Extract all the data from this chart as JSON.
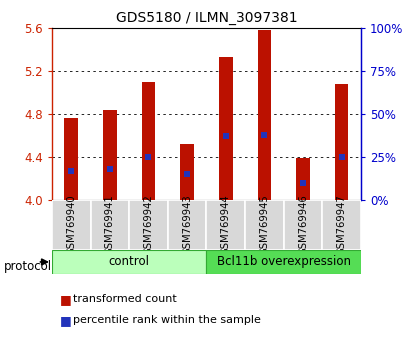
{
  "title": "GDS5180 / ILMN_3097381",
  "samples": [
    "GSM769940",
    "GSM769941",
    "GSM769942",
    "GSM769943",
    "GSM769944",
    "GSM769945",
    "GSM769946",
    "GSM769947"
  ],
  "transformed_count": [
    4.76,
    4.84,
    5.1,
    4.52,
    5.33,
    5.58,
    4.39,
    5.08
  ],
  "percentile_rank": [
    17,
    18,
    25,
    15,
    37,
    38,
    10,
    25
  ],
  "bar_bottom": 4.0,
  "ylim_left": [
    4.0,
    5.6
  ],
  "ylim_right": [
    0,
    100
  ],
  "yticks_left": [
    4.0,
    4.4,
    4.8,
    5.2,
    5.6
  ],
  "yticks_right": [
    0,
    25,
    50,
    75,
    100
  ],
  "groups": [
    {
      "label": "control",
      "indices": [
        0,
        1,
        2,
        3
      ],
      "color": "#bbffbb",
      "edge_color": "#55cc55"
    },
    {
      "label": "Bcl11b overexpression",
      "indices": [
        4,
        5,
        6,
        7
      ],
      "color": "#55dd55",
      "edge_color": "#33aa33"
    }
  ],
  "bar_color": "#bb1100",
  "blue_marker_color": "#2233bb",
  "protocol_label": "protocol",
  "legend_items": [
    {
      "label": "transformed count",
      "color": "#bb1100"
    },
    {
      "label": "percentile rank within the sample",
      "color": "#2233bb"
    }
  ],
  "tick_label_color_left": "#cc2200",
  "tick_label_color_right": "#0000cc",
  "bar_width": 0.35,
  "marker_size": 4
}
